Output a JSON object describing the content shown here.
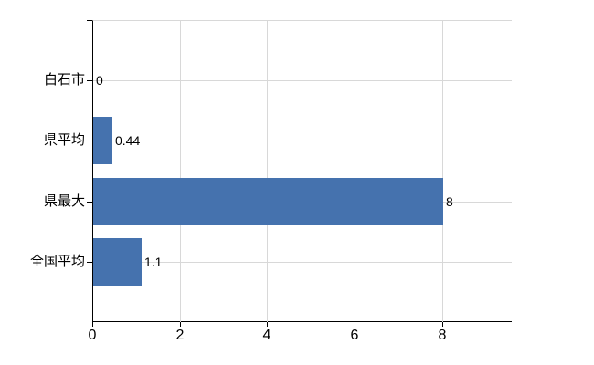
{
  "chart_data": {
    "type": "bar",
    "orientation": "horizontal",
    "title": "",
    "xlabel": "",
    "ylabel": "",
    "categories": [
      "白石市",
      "県平均",
      "県最大",
      "全国平均"
    ],
    "values": [
      0,
      0.44,
      8,
      1.1
    ],
    "value_labels": [
      "0",
      "0.44",
      "8",
      "1.1"
    ],
    "x_ticks": [
      "0",
      "2",
      "4",
      "6",
      "8"
    ],
    "x_tick_values": [
      0,
      2,
      4,
      6,
      8
    ],
    "xlim": [
      0,
      9.6
    ],
    "grid": true,
    "legend": "none",
    "colors": {
      "bar": "#4572AE",
      "grid": "#D8D8D8",
      "axis": "#000000",
      "text": "#000000"
    }
  }
}
